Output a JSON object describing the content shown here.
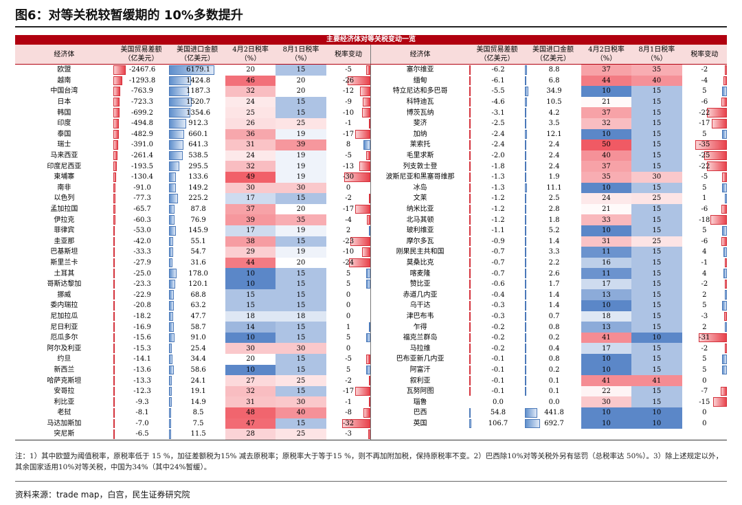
{
  "figure": {
    "title": "图6：对等关税较暂缓期的 10%多数提升"
  },
  "table": {
    "banner": "主要经济体对等关税变动一览",
    "headers": {
      "name": "经济体",
      "deficit": "美国贸易差额（亿美元）",
      "imports": "美国进口金额（亿美元）",
      "apr_rate": "4月2日税率（%）",
      "aug_rate": "8月1日税率（%）",
      "change": "税率变动"
    },
    "header_lines": {
      "name": [
        "经济体"
      ],
      "deficit": [
        "美国贸易差额",
        "（亿美元）"
      ],
      "imports": [
        "美国进口金额",
        "（亿美元）"
      ],
      "apr_rate": [
        "4月2日税率",
        "（%）"
      ],
      "aug_rate": [
        "8月1日税率",
        "（%）"
      ],
      "change": [
        "税率变动",
        ""
      ]
    },
    "left_rows": [
      {
        "name": "欧盟",
        "deficit": "-2467.6",
        "imports": "6179.1",
        "apr": "20",
        "aug": "15",
        "chg": "-5"
      },
      {
        "name": "越南",
        "deficit": "-1293.8",
        "imports": "1424.8",
        "apr": "46",
        "aug": "20",
        "chg": "-26"
      },
      {
        "name": "中国台湾",
        "deficit": "-763.9",
        "imports": "1187.3",
        "apr": "32",
        "aug": "20",
        "chg": "-12"
      },
      {
        "name": "日本",
        "deficit": "-723.3",
        "imports": "1520.7",
        "apr": "24",
        "aug": "15",
        "chg": "-9"
      },
      {
        "name": "韩国",
        "deficit": "-699.2",
        "imports": "1354.6",
        "apr": "25",
        "aug": "15",
        "chg": "-10"
      },
      {
        "name": "印度",
        "deficit": "-494.8",
        "imports": "912.3",
        "apr": "26",
        "aug": "25",
        "chg": "-1"
      },
      {
        "name": "泰国",
        "deficit": "-482.9",
        "imports": "660.1",
        "apr": "36",
        "aug": "19",
        "chg": "-17"
      },
      {
        "name": "瑞士",
        "deficit": "-391.0",
        "imports": "641.3",
        "apr": "31",
        "aug": "39",
        "chg": "8"
      },
      {
        "name": "马来西亚",
        "deficit": "-261.4",
        "imports": "538.5",
        "apr": "24",
        "aug": "19",
        "chg": "-5"
      },
      {
        "name": "印度尼西亚",
        "deficit": "-193.5",
        "imports": "295.5",
        "apr": "32",
        "aug": "19",
        "chg": "-13"
      },
      {
        "name": "柬埔寨",
        "deficit": "-130.4",
        "imports": "133.6",
        "apr": "49",
        "aug": "19",
        "chg": "-30"
      },
      {
        "name": "南非",
        "deficit": "-91.0",
        "imports": "149.2",
        "apr": "30",
        "aug": "30",
        "chg": "0"
      },
      {
        "name": "以色列",
        "deficit": "-77.3",
        "imports": "225.2",
        "apr": "17",
        "aug": "15",
        "chg": "-2"
      },
      {
        "name": "孟加拉国",
        "deficit": "-65.7",
        "imports": "87.8",
        "apr": "37",
        "aug": "20",
        "chg": "-17"
      },
      {
        "name": "伊拉克",
        "deficit": "-60.3",
        "imports": "76.9",
        "apr": "39",
        "aug": "35",
        "chg": "-4"
      },
      {
        "name": "菲律宾",
        "deficit": "-53.0",
        "imports": "145.9",
        "apr": "17",
        "aug": "19",
        "chg": "2"
      },
      {
        "name": "圭亚那",
        "deficit": "-42.0",
        "imports": "55.1",
        "apr": "38",
        "aug": "15",
        "chg": "-23"
      },
      {
        "name": "巴基斯坦",
        "deficit": "-33.3",
        "imports": "54.7",
        "apr": "29",
        "aug": "19",
        "chg": "-10"
      },
      {
        "name": "斯里兰卡",
        "deficit": "-27.9",
        "imports": "31.6",
        "apr": "44",
        "aug": "20",
        "chg": "-24"
      },
      {
        "name": "土耳其",
        "deficit": "-25.0",
        "imports": "178.0",
        "apr": "10",
        "aug": "15",
        "chg": "5"
      },
      {
        "name": "哥斯达黎加",
        "deficit": "-23.3",
        "imports": "120.1",
        "apr": "10",
        "aug": "15",
        "chg": "5"
      },
      {
        "name": "挪威",
        "deficit": "-22.9",
        "imports": "68.8",
        "apr": "15",
        "aug": "15",
        "chg": "0"
      },
      {
        "name": "委内瑞拉",
        "deficit": "-20.8",
        "imports": "63.2",
        "apr": "15",
        "aug": "15",
        "chg": "0"
      },
      {
        "name": "尼加拉瓜",
        "deficit": "-18.2",
        "imports": "47.7",
        "apr": "18",
        "aug": "18",
        "chg": "0"
      },
      {
        "name": "尼日利亚",
        "deficit": "-16.9",
        "imports": "58.7",
        "apr": "14",
        "aug": "15",
        "chg": "1"
      },
      {
        "name": "厄瓜多尔",
        "deficit": "-15.6",
        "imports": "91.0",
        "apr": "10",
        "aug": "15",
        "chg": "5"
      },
      {
        "name": "阿尔及利亚",
        "deficit": "-15.3",
        "imports": "25.4",
        "apr": "30",
        "aug": "30",
        "chg": "0"
      },
      {
        "name": "约旦",
        "deficit": "-14.1",
        "imports": "34.4",
        "apr": "20",
        "aug": "15",
        "chg": "-5"
      },
      {
        "name": "新西兰",
        "deficit": "-13.6",
        "imports": "58.6",
        "apr": "10",
        "aug": "15",
        "chg": "5"
      },
      {
        "name": "哈萨克斯坦",
        "deficit": "-13.3",
        "imports": "24.1",
        "apr": "27",
        "aug": "25",
        "chg": "-2"
      },
      {
        "name": "安哥拉",
        "deficit": "-12.3",
        "imports": "19.1",
        "apr": "32",
        "aug": "15",
        "chg": "-17"
      },
      {
        "name": "利比亚",
        "deficit": "-9.3",
        "imports": "14.9",
        "apr": "31",
        "aug": "30",
        "chg": "-1"
      },
      {
        "name": "老挝",
        "deficit": "-8.1",
        "imports": "8.5",
        "apr": "48",
        "aug": "40",
        "chg": "-8"
      },
      {
        "name": "马达加斯加",
        "deficit": "-7.0",
        "imports": "7.5",
        "apr": "47",
        "aug": "15",
        "chg": "-32"
      },
      {
        "name": "突尼斯",
        "deficit": "-6.5",
        "imports": "11.5",
        "apr": "28",
        "aug": "25",
        "chg": "-3"
      }
    ],
    "right_rows": [
      {
        "name": "塞尔维亚",
        "deficit": "-6.2",
        "imports": "8.8",
        "apr": "37",
        "aug": "35",
        "chg": "-2"
      },
      {
        "name": "缅甸",
        "deficit": "-6.1",
        "imports": "6.8",
        "apr": "44",
        "aug": "40",
        "chg": "-4"
      },
      {
        "name": "特立尼达和多巴哥",
        "deficit": "-5.5",
        "imports": "34.9",
        "apr": "10",
        "aug": "15",
        "chg": "5"
      },
      {
        "name": "科特迪瓦",
        "deficit": "-4.6",
        "imports": "10.5",
        "apr": "21",
        "aug": "15",
        "chg": "-6"
      },
      {
        "name": "博茨瓦纳",
        "deficit": "-3.1",
        "imports": "4.2",
        "apr": "37",
        "aug": "15",
        "chg": "-22"
      },
      {
        "name": "斐济",
        "deficit": "-2.5",
        "imports": "3.5",
        "apr": "32",
        "aug": "15",
        "chg": "-17"
      },
      {
        "name": "加纳",
        "deficit": "-2.4",
        "imports": "12.1",
        "apr": "10",
        "aug": "15",
        "chg": "5"
      },
      {
        "name": "莱索托",
        "deficit": "-2.4",
        "imports": "2.4",
        "apr": "50",
        "aug": "15",
        "chg": "-35"
      },
      {
        "name": "毛里求斯",
        "deficit": "-2.0",
        "imports": "2.4",
        "apr": "40",
        "aug": "15",
        "chg": "-25"
      },
      {
        "name": "列支敦士登",
        "deficit": "-1.8",
        "imports": "2.4",
        "apr": "37",
        "aug": "15",
        "chg": "-22"
      },
      {
        "name": "波斯尼亚和黑塞哥维那",
        "deficit": "-1.3",
        "imports": "1.9",
        "apr": "35",
        "aug": "30",
        "chg": "-5"
      },
      {
        "name": "冰岛",
        "deficit": "-1.3",
        "imports": "11.1",
        "apr": "10",
        "aug": "15",
        "chg": "5"
      },
      {
        "name": "文莱",
        "deficit": "-1.2",
        "imports": "2.5",
        "apr": "24",
        "aug": "25",
        "chg": "1"
      },
      {
        "name": "纳米比亚",
        "deficit": "-1.2",
        "imports": "2.8",
        "apr": "21",
        "aug": "15",
        "chg": "-6"
      },
      {
        "name": "北马其顿",
        "deficit": "-1.2",
        "imports": "1.8",
        "apr": "33",
        "aug": "15",
        "chg": "-18"
      },
      {
        "name": "玻利维亚",
        "deficit": "-1.1",
        "imports": "5.2",
        "apr": "10",
        "aug": "15",
        "chg": "5"
      },
      {
        "name": "摩尔多瓦",
        "deficit": "-0.9",
        "imports": "1.4",
        "apr": "31",
        "aug": "25",
        "chg": "-6"
      },
      {
        "name": "刚果民主共和国",
        "deficit": "-0.7",
        "imports": "3.3",
        "apr": "11",
        "aug": "15",
        "chg": "4"
      },
      {
        "name": "莫桑比克",
        "deficit": "-0.7",
        "imports": "2.2",
        "apr": "16",
        "aug": "15",
        "chg": "-1"
      },
      {
        "name": "喀麦隆",
        "deficit": "-0.7",
        "imports": "2.6",
        "apr": "11",
        "aug": "15",
        "chg": "4"
      },
      {
        "name": "赞比亚",
        "deficit": "-0.6",
        "imports": "1.7",
        "apr": "17",
        "aug": "15",
        "chg": "-2"
      },
      {
        "name": "赤道几内亚",
        "deficit": "-0.4",
        "imports": "1.4",
        "apr": "13",
        "aug": "15",
        "chg": "2"
      },
      {
        "name": "乌干达",
        "deficit": "-0.3",
        "imports": "1.4",
        "apr": "10",
        "aug": "15",
        "chg": "5"
      },
      {
        "name": "津巴布韦",
        "deficit": "-0.3",
        "imports": "0.7",
        "apr": "18",
        "aug": "15",
        "chg": "-3"
      },
      {
        "name": "乍得",
        "deficit": "-0.2",
        "imports": "0.8",
        "apr": "13",
        "aug": "15",
        "chg": "2"
      },
      {
        "name": "福克兰群岛",
        "deficit": "-0.2",
        "imports": "0.2",
        "apr": "41",
        "aug": "10",
        "chg": "-31"
      },
      {
        "name": "马拉维",
        "deficit": "-0.2",
        "imports": "0.4",
        "apr": "17",
        "aug": "15",
        "chg": "-2"
      },
      {
        "name": "巴布亚新几内亚",
        "deficit": "-0.1",
        "imports": "0.8",
        "apr": "10",
        "aug": "15",
        "chg": "5"
      },
      {
        "name": "阿富汗",
        "deficit": "-0.1",
        "imports": "0.2",
        "apr": "10",
        "aug": "15",
        "chg": "5"
      },
      {
        "name": "叙利亚",
        "deficit": "-0.1",
        "imports": "0.1",
        "apr": "41",
        "aug": "41",
        "chg": "0"
      },
      {
        "name": "瓦努阿图",
        "deficit": "-0.1",
        "imports": "0.1",
        "apr": "22",
        "aug": "15",
        "chg": "-7"
      },
      {
        "name": "瑙鲁",
        "deficit": "0.0",
        "imports": "0.0",
        "apr": "30",
        "aug": "15",
        "chg": "-15"
      },
      {
        "name": "巴西",
        "deficit": "54.8",
        "imports": "441.8",
        "apr": "10",
        "aug": "10",
        "chg": "0"
      },
      {
        "name": "英国",
        "deficit": "106.7",
        "imports": "692.7",
        "apr": "10",
        "aug": "10",
        "chg": "0"
      }
    ],
    "notes": "注：1）其中欧盟为阈值税率，原税率低于 15 %，加征差额税为15% 减去原税率；原税率大于等于15 %，则不再加附加税，保持原税率不变。2）巴西除10%对等关税外另有惩罚（总税率达 50%）。3）除上述规定以外，其余国家适用10%对等关税，中国为34%（其中24%暂缓）。",
    "source": "资料来源：trade map，白宫，民生证券研究院"
  },
  "colors": {
    "banner": "#b1000f",
    "header_bg": "#f8dcdc",
    "rate_high": "#f05a64",
    "rate_low": "#5b87c8",
    "rate_neutral": "#ffffff",
    "bar_negative": "#e8424c",
    "bar_positive": "#5f8fcc"
  }
}
